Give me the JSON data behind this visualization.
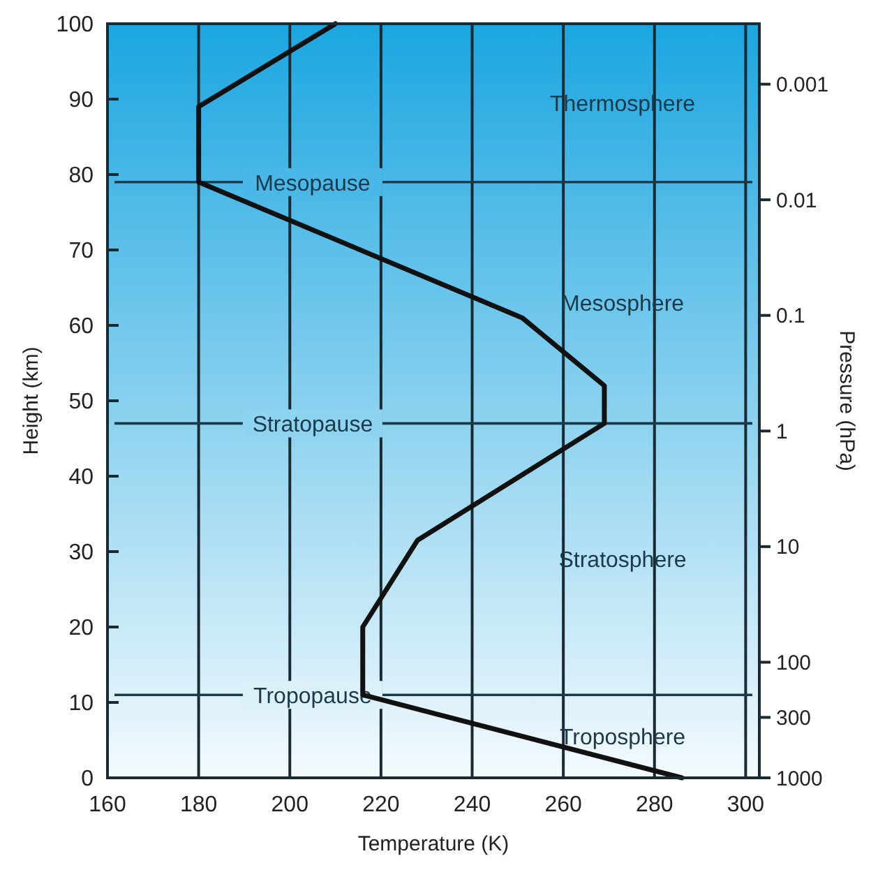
{
  "chart_data": {
    "type": "line",
    "xlabel": "Temperature (K)",
    "ylabel": "Height (km)",
    "y2label": "Pressure (hPa)",
    "xlim": [
      160,
      303
    ],
    "xticks": [
      160,
      180,
      200,
      220,
      240,
      260,
      280,
      300
    ],
    "ylim": [
      0,
      100
    ],
    "yticks": [
      0,
      10,
      20,
      30,
      40,
      50,
      60,
      70,
      80,
      90,
      100
    ],
    "y2lim": [
      1000,
      0.0003
    ],
    "y2ticks": [
      0.001,
      0.01,
      0.1,
      1,
      10,
      100,
      300,
      1000
    ],
    "log": "y2",
    "grid": "x",
    "marker": "none",
    "line_style": "solid",
    "series": [
      {
        "color": "#111111",
        "x": [
          210,
          180,
          180,
          251,
          269,
          269,
          228,
          216,
          216,
          286
        ],
        "values": [
          100,
          89,
          79,
          61,
          52,
          47,
          31.5,
          20,
          11,
          0
        ]
      }
    ],
    "ref_lines": [
      {
        "axis": "y",
        "value": 79,
        "label": "Mesopause",
        "color": "#1a3a4a"
      },
      {
        "axis": "y",
        "value": 47,
        "label": "Stratopause",
        "color": "#1a3a4a"
      },
      {
        "axis": "y",
        "value": 11,
        "label": "Tropopause",
        "color": "#1a3a4a"
      }
    ],
    "annotations": [
      "Thermosphere",
      "Mesosphere",
      "Stratosphere",
      "Troposphere"
    ]
  }
}
